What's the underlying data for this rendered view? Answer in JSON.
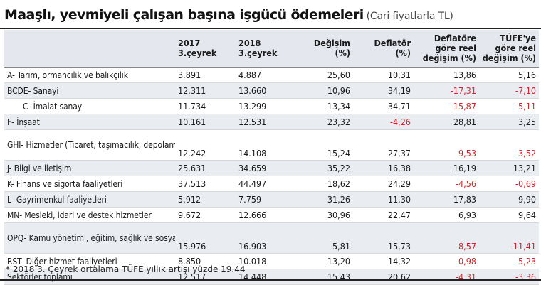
{
  "title": {
    "main": "Maaşlı, yevmiyeli çalışan başına işgücü ödemeleri",
    "sub": "(Cari fiyatlarla TL)"
  },
  "columns": [
    "",
    "2017\n3.çeyrek",
    "2018\n3.çeyrek",
    "Değişim\n(%)",
    "Deflatör\n(%)",
    "Deflatöre\ngöre reel\ndeğişim (%)",
    "TÜFE'ye\ngöre reel\ndeğişim (%)"
  ],
  "rows": [
    {
      "label": "A- Tarım, ormancılık ve balıkçılık",
      "v2017": "3.891",
      "v2018": "4.887",
      "change": "25,60",
      "deflator": "10,31",
      "real_deflator": "13,86",
      "real_cpi": "5,16"
    },
    {
      "label": "BCDE- Sanayi",
      "v2017": "12.311",
      "v2018": "13.660",
      "change": "10,96",
      "deflator": "34,19",
      "real_deflator": "-17,31",
      "real_cpi": "-7,10"
    },
    {
      "label": "C- İmalat sanayi",
      "v2017": "11.734",
      "v2018": "13.299",
      "change": "13,34",
      "deflator": "34,71",
      "real_deflator": "-15,87",
      "real_cpi": "-5,11",
      "indent": true
    },
    {
      "label": "F- İnşaat",
      "v2017": "10.161",
      "v2018": "12.531",
      "change": "23,32",
      "deflator": "-4,26",
      "real_deflator": "28,81",
      "real_cpi": "3,25"
    },
    {
      "label": "GHI- Hizmetler (Ticaret, taşımacılık, depolama,konaklama, yiyecek hiz.)",
      "v2017": "12.242",
      "v2018": "14.108",
      "change": "15,24",
      "deflator": "27,37",
      "real_deflator": "-9,53",
      "real_cpi": "-3,52",
      "tall": true
    },
    {
      "label": "J- Bilgi ve iletişim",
      "v2017": "25.631",
      "v2018": "34.659",
      "change": "35,22",
      "deflator": "16,38",
      "real_deflator": "16,19",
      "real_cpi": "13,21"
    },
    {
      "label": "K- Finans ve sigorta faaliyetleri",
      "v2017": "37.513",
      "v2018": "44.497",
      "change": "18,62",
      "deflator": "24,29",
      "real_deflator": "-4,56",
      "real_cpi": "-0,69"
    },
    {
      "label": "L- Gayrimenkul faaliyetleri",
      "v2017": "5.912",
      "v2018": "7.759",
      "change": "31,26",
      "deflator": "11,30",
      "real_deflator": "17,83",
      "real_cpi": "9,90"
    },
    {
      "label": "MN- Mesleki, idari ve destek hizmetler",
      "v2017": "9.672",
      "v2018": "12.666",
      "change": "30,96",
      "deflator": "22,47",
      "real_deflator": "6,93",
      "real_cpi": "9,64"
    },
    {
      "label": "OPQ- Kamu yönetimi, eğitim, sağlık ve sosyal hiz.",
      "v2017": "15.976",
      "v2018": "16.903",
      "change": "5,81",
      "deflator": "15,73",
      "real_deflator": "-8,57",
      "real_cpi": "-11,41",
      "tall": true
    },
    {
      "label": "RST- Diğer hizmet faaliyetleri",
      "v2017": "8.850",
      "v2018": "10.018",
      "change": "13,20",
      "deflator": "14,32",
      "real_deflator": "-0,98",
      "real_cpi": "-5,23"
    },
    {
      "label": "Sektörler toplamı",
      "v2017": "12.517",
      "v2018": "14.448",
      "change": "15,43",
      "deflator": "20,62",
      "real_deflator": "-4,31",
      "real_cpi": "-3,36"
    }
  ],
  "negative_color": "#d8202a",
  "footnote": "* 2018 3. Çeyrek ortalama TÜFE yıllık artışı yüzde 19.44"
}
